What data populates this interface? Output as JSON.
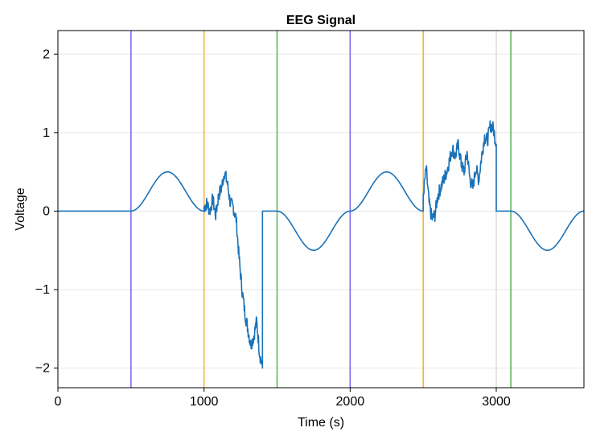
{
  "chart_data": {
    "type": "line",
    "title": "EEG Signal",
    "xlabel": "Time (s)",
    "ylabel": "Voltage",
    "xlim": [
      0,
      3600
    ],
    "ylim": [
      -2.25,
      2.3
    ],
    "x_ticks": [
      0,
      1000,
      2000,
      3000
    ],
    "y_ticks": [
      -2,
      -1,
      0,
      1,
      2
    ],
    "x_tick_labels": [
      "0",
      "1000",
      "2000",
      "3000"
    ],
    "y_tick_labels": [
      "−2",
      "−1",
      "0",
      "1",
      "2"
    ],
    "grid": true,
    "legend": "none",
    "vertical_markers": [
      {
        "x": 500,
        "color": "#7b68ee"
      },
      {
        "x": 1000,
        "color": "#f5b342"
      },
      {
        "x": 1500,
        "color": "#5cb85c"
      },
      {
        "x": 2000,
        "color": "#7b68ee"
      },
      {
        "x": 2500,
        "color": "#f5b342"
      },
      {
        "x": 3000,
        "color": "#dddddd"
      },
      {
        "x": 3100,
        "color": "#5cb85c"
      }
    ],
    "series": [
      {
        "color": "#1f77b4",
        "segments": [
          {
            "kind": "flat",
            "from": 0,
            "to": 500,
            "value": 0
          },
          {
            "kind": "bump",
            "from": 500,
            "to": 1000,
            "amplitude": 0.5
          },
          {
            "kind": "walk",
            "x": [
              1000,
              1020,
              1040,
              1060,
              1080,
              1100,
              1120,
              1140,
              1160,
              1180,
              1200,
              1220,
              1240,
              1260,
              1280,
              1300,
              1320,
              1340,
              1360,
              1380,
              1400
            ],
            "y": [
              0.05,
              0.1,
              0.0,
              0.15,
              -0.05,
              0.2,
              0.3,
              0.5,
              0.35,
              0.1,
              0.05,
              -0.1,
              -0.6,
              -1.0,
              -1.3,
              -1.5,
              -1.7,
              -1.6,
              -1.4,
              -1.8,
              -2.0
            ]
          },
          {
            "kind": "flat",
            "from": 1400,
            "to": 1500,
            "value": 0
          },
          {
            "kind": "dip",
            "from": 1500,
            "to": 2000,
            "amplitude": -0.5
          },
          {
            "kind": "bump",
            "from": 2000,
            "to": 2500,
            "amplitude": 0.5
          },
          {
            "kind": "walk",
            "x": [
              2500,
              2520,
              2540,
              2560,
              2580,
              2600,
              2620,
              2640,
              2660,
              2680,
              2700,
              2720,
              2740,
              2760,
              2780,
              2800,
              2820,
              2840,
              2860,
              2880,
              2900,
              2920,
              2940,
              2960,
              2980,
              3000
            ],
            "y": [
              0.2,
              0.55,
              0.1,
              -0.1,
              -0.05,
              0.2,
              0.3,
              0.4,
              0.5,
              0.65,
              0.8,
              0.7,
              0.85,
              0.6,
              0.5,
              0.75,
              0.4,
              0.3,
              0.55,
              0.4,
              0.7,
              0.95,
              0.9,
              1.1,
              1.05,
              0.85
            ]
          },
          {
            "kind": "flat",
            "from": 3000,
            "to": 3100,
            "value": 0
          },
          {
            "kind": "dip",
            "from": 3100,
            "to": 3600,
            "amplitude": -0.5
          }
        ]
      }
    ]
  }
}
